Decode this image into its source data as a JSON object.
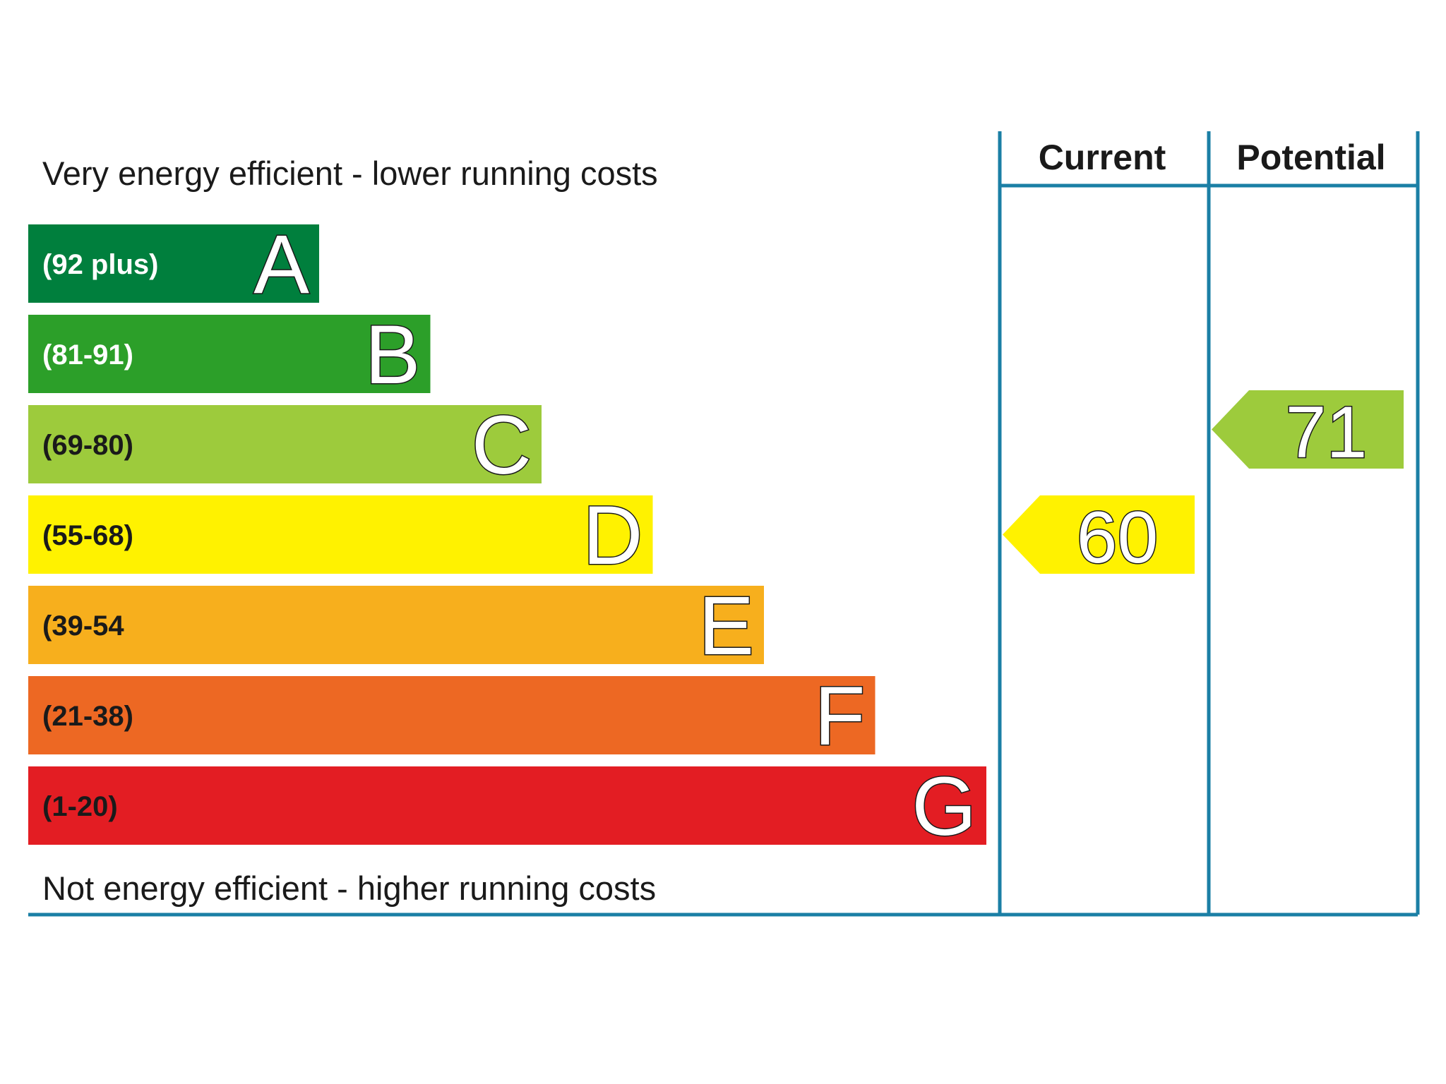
{
  "chart_data": {
    "type": "bar",
    "caption_top": "Very energy efficient - lower running costs",
    "caption_bottom": "Not energy efficient - higher running costs",
    "columns": {
      "current": "Current",
      "potential": "Potential"
    },
    "bands": [
      {
        "letter": "A",
        "range": "(92 plus)",
        "min": 92,
        "max": 100,
        "color": "#007f3d",
        "range_text_color": "#ffffff"
      },
      {
        "letter": "B",
        "range": "(81-91)",
        "min": 81,
        "max": 91,
        "color": "#2c9f29",
        "range_text_color": "#ffffff"
      },
      {
        "letter": "C",
        "range": "(69-80)",
        "min": 69,
        "max": 80,
        "color": "#9dcb3c",
        "range_text_color": "#1a1a1a"
      },
      {
        "letter": "D",
        "range": "(55-68)",
        "min": 55,
        "max": 68,
        "color": "#fff200",
        "range_text_color": "#1a1a1a"
      },
      {
        "letter": "E",
        "range": "(39-54",
        "min": 39,
        "max": 54,
        "color": "#f7af1d",
        "range_text_color": "#1a1a1a"
      },
      {
        "letter": "F",
        "range": "(21-38)",
        "min": 21,
        "max": 38,
        "color": "#ed6823",
        "range_text_color": "#1a1a1a"
      },
      {
        "letter": "G",
        "range": "(1-20)",
        "min": 1,
        "max": 20,
        "color": "#e31d23",
        "range_text_color": "#1a1a1a"
      }
    ],
    "ratings": {
      "current": {
        "value": 60,
        "band": "D",
        "color": "#fff200"
      },
      "potential": {
        "value": 71,
        "band": "C",
        "color": "#9dcb3c"
      }
    },
    "frame_color": "#1b7fa5"
  }
}
